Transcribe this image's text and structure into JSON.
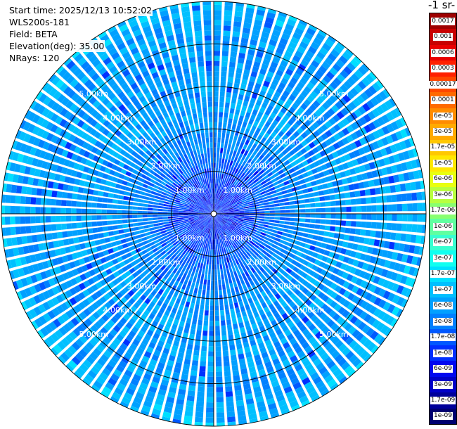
{
  "info": {
    "start_time": "Start time: 2025/12/13 10:52:02",
    "instrument": "WLS200s-181",
    "field": "Field: BETA",
    "elevation": "Elevation(deg): 35.00",
    "nrays": "NRays: 120"
  },
  "colorbar": {
    "title": "-1 sr-",
    "levels": [
      {
        "label": "0.0017",
        "color": "#9e0000"
      },
      {
        "label": "0.001",
        "color": "#c80000"
      },
      {
        "label": "0.0006",
        "color": "#e80000"
      },
      {
        "label": "0.0003",
        "color": "#ff2000"
      },
      {
        "label": "0.00017",
        "color": "#ff4800"
      },
      {
        "label": "0.0001",
        "color": "#ff6a00"
      },
      {
        "label": "6e-05",
        "color": "#ff8c00"
      },
      {
        "label": "3e-05",
        "color": "#ffaa00"
      },
      {
        "label": "1.7e-05",
        "color": "#ffc800"
      },
      {
        "label": "1e-05",
        "color": "#ffe800"
      },
      {
        "label": "6e-06",
        "color": "#e8ff10"
      },
      {
        "label": "3e-06",
        "color": "#b8ff40"
      },
      {
        "label": "1.7e-06",
        "color": "#88ff70"
      },
      {
        "label": "1e-06",
        "color": "#60ffa0"
      },
      {
        "label": "6e-07",
        "color": "#38ffd0"
      },
      {
        "label": "3e-07",
        "color": "#10fff0"
      },
      {
        "label": "1.7e-07",
        "color": "#00e0ff"
      },
      {
        "label": "1e-07",
        "color": "#00c0ff"
      },
      {
        "label": "6e-08",
        "color": "#00a0ff"
      },
      {
        "label": "3e-08",
        "color": "#0080ff"
      },
      {
        "label": "1.7e-08",
        "color": "#0058ff"
      },
      {
        "label": "1e-08",
        "color": "#0030ff"
      },
      {
        "label": "6e-09",
        "color": "#0008f0"
      },
      {
        "label": "3e-09",
        "color": "#0000c8"
      },
      {
        "label": "1.7e-09",
        "color": "#00009a"
      },
      {
        "label": "1e-09",
        "color": "#000070"
      }
    ]
  },
  "chart_data": {
    "type": "heatmap",
    "projection": "polar PPI",
    "n_rays": 120,
    "max_range_km": 5.0,
    "range_rings_km": [
      1,
      2,
      3,
      4,
      5
    ],
    "ring_labels": [
      "1.00km",
      "2.00km",
      "3.00km",
      "4.00km",
      "5.00km"
    ],
    "dominant_value_by_range_km": [
      {
        "range_km": 0.5,
        "value": "1e-08"
      },
      {
        "range_km": 1.5,
        "value": "3e-08"
      },
      {
        "range_km": 2.5,
        "value": "6e-08"
      },
      {
        "range_km": 3.5,
        "value": "6e-08"
      },
      {
        "range_km": 4.5,
        "value": "6e-08"
      },
      {
        "range_km": 5.0,
        "value": "1e-07"
      }
    ]
  }
}
